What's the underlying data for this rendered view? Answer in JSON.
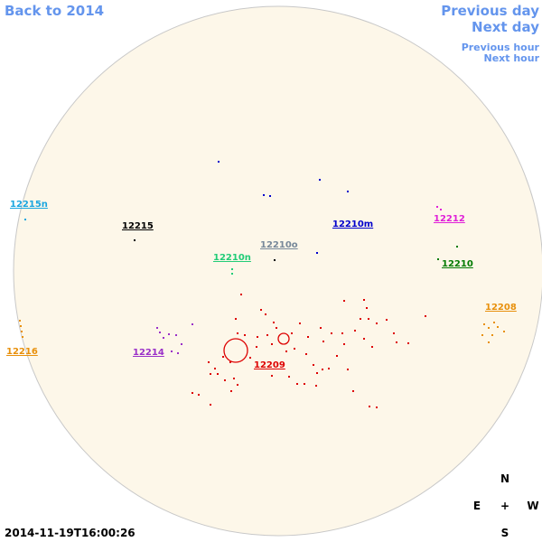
{
  "nav": {
    "back": "Back to 2014",
    "prev_day": "Previous day",
    "next_day": "Next day",
    "prev_hour": "Previous hour",
    "next_hour": "Next hour"
  },
  "regions": [
    {
      "label": "12215n",
      "color": "#1aa6e0"
    },
    {
      "label": "12215",
      "color": "#000000"
    },
    {
      "label": "12210m",
      "color": "#0000cc"
    },
    {
      "label": "12212",
      "color": "#e020d8"
    },
    {
      "label": "12210o",
      "color": "#778899"
    },
    {
      "label": "12210n",
      "color": "#22cc77"
    },
    {
      "label": "12210",
      "color": "#007a00"
    },
    {
      "label": "12208",
      "color": "#e8900c"
    },
    {
      "label": "12216",
      "color": "#e8900c"
    },
    {
      "label": "12214",
      "color": "#9a30c8"
    },
    {
      "label": "12209",
      "color": "#dd0000"
    }
  ],
  "timestamp": "2014-11-19T16:00:26",
  "compass": {
    "north": "N",
    "east": "E",
    "center": "+",
    "west": "W",
    "south": "S"
  }
}
